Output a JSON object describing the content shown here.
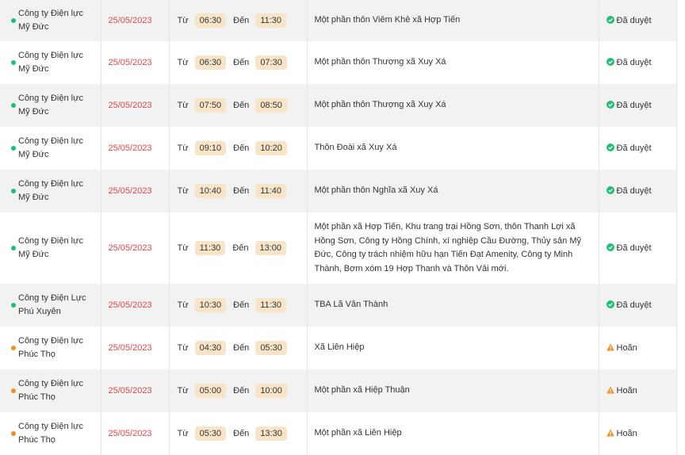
{
  "colors": {
    "approved": "#1fbf75",
    "postponed": "#f0901e",
    "date": "#e0484d",
    "pill": "#f8e5c8"
  },
  "labels": {
    "from": "Từ",
    "to": "Đến"
  },
  "rows": [
    {
      "company": "Công ty Điện lực Mỹ Đức",
      "date": "25/05/2023",
      "from": "06:30",
      "to": "11:30",
      "area": "Một phần thôn Viêm Khê xã Hợp Tiến",
      "status": "Đã duyệt",
      "state": "approved"
    },
    {
      "company": "Công ty Điện lực Mỹ Đức",
      "date": "25/05/2023",
      "from": "06:30",
      "to": "07:30",
      "area": "Một phần thôn Thượng xã Xuy Xá",
      "status": "Đã duyệt",
      "state": "approved"
    },
    {
      "company": "Công ty Điện lực Mỹ Đức",
      "date": "25/05/2023",
      "from": "07:50",
      "to": "08:50",
      "area": "Một phần thôn Thượng xã Xuy Xá",
      "status": "Đã duyệt",
      "state": "approved"
    },
    {
      "company": "Công ty Điện lực Mỹ Đức",
      "date": "25/05/2023",
      "from": "09:10",
      "to": "10:20",
      "area": "Thôn Đoài xã Xuy Xá",
      "status": "Đã duyệt",
      "state": "approved"
    },
    {
      "company": "Công ty Điện lực Mỹ Đức",
      "date": "25/05/2023",
      "from": "10:40",
      "to": "11:40",
      "area": "Một phần thôn Nghĩa xã Xuy Xá",
      "status": "Đã duyệt",
      "state": "approved"
    },
    {
      "company": "Công ty Điện lực Mỹ Đức",
      "date": "25/05/2023",
      "from": "11:30",
      "to": "13:00",
      "area": "Một phần xã Hợp Tiến, Khu trang trại Hồng Sơn, thôn Thanh Lợi xã Hồng Sơn, Công ty Hồng Chính, xí nghiệp Cầu Đường, Thủy sản Mỹ Đức, Công ty trách nhiệm hữu hạn Tiến Đạt Amenity, Công ty Minh Thành, Bơm xóm 19 Hợp Thanh và Thôn Vải mới.",
      "status": "Đã duyệt",
      "state": "approved"
    },
    {
      "company": "Công ty Điện Lực Phú Xuyên",
      "date": "25/05/2023",
      "from": "10:30",
      "to": "11:30",
      "area": "TBA Lã Văn Thành",
      "status": "Đã duyệt",
      "state": "approved"
    },
    {
      "company": "Công ty Điện lực Phúc Thọ",
      "date": "25/05/2023",
      "from": "04:30",
      "to": "05:30",
      "area": "Xã Liên Hiệp",
      "status": "Hoãn",
      "state": "postponed"
    },
    {
      "company": "Công ty Điện lực Phúc Thọ",
      "date": "25/05/2023",
      "from": "05:00",
      "to": "10:00",
      "area": "Một phần xã Hiệp Thuận",
      "status": "Hoãn",
      "state": "postponed"
    },
    {
      "company": "Công ty Điện lực Phúc Thọ",
      "date": "25/05/2023",
      "from": "05:30",
      "to": "13:30",
      "area": "Một phần xã Liên Hiệp",
      "status": "Hoãn",
      "state": "postponed"
    }
  ]
}
